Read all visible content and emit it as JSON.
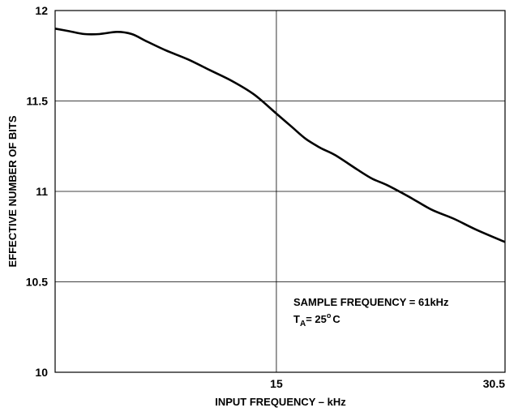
{
  "chart_data": {
    "type": "line",
    "xlabel": "INPUT FREQUENCY – kHz",
    "ylabel": "EFFECTIVE NUMBER OF BITS",
    "xlim": [
      0,
      30.5
    ],
    "ylim": [
      10,
      12
    ],
    "x_ticks": [
      {
        "value": 15,
        "label": "15"
      },
      {
        "value": 30.5,
        "label": "30.5"
      }
    ],
    "y_ticks": [
      {
        "value": 10,
        "label": "10"
      },
      {
        "value": 10.5,
        "label": "10.5"
      },
      {
        "value": 11,
        "label": "11"
      },
      {
        "value": 11.5,
        "label": "11.5"
      },
      {
        "value": 12,
        "label": "12"
      }
    ],
    "grid": true,
    "series": [
      {
        "x": [
          0,
          1.0,
          2.0,
          3.0,
          4.2,
          5.2,
          6.2,
          7.5,
          9.0,
          10.5,
          12.0,
          13.5,
          15.0,
          16.0,
          17.0,
          18.0,
          19.0,
          20.5,
          21.5,
          22.5,
          24.0,
          25.5,
          27.0,
          28.5,
          30.5
        ],
        "y": [
          11.9,
          11.885,
          11.87,
          11.87,
          11.882,
          11.87,
          11.83,
          11.78,
          11.73,
          11.67,
          11.61,
          11.535,
          11.43,
          11.36,
          11.29,
          11.24,
          11.2,
          11.12,
          11.07,
          11.035,
          10.97,
          10.9,
          10.85,
          10.79,
          10.72
        ]
      }
    ],
    "annotations": [
      {
        "text": "SAMPLE FREQUENCY = 61kHz"
      },
      {
        "text": "T",
        "subscript": "A",
        "rest": "= 25",
        "superscript": "o",
        "unit": "C"
      }
    ]
  }
}
